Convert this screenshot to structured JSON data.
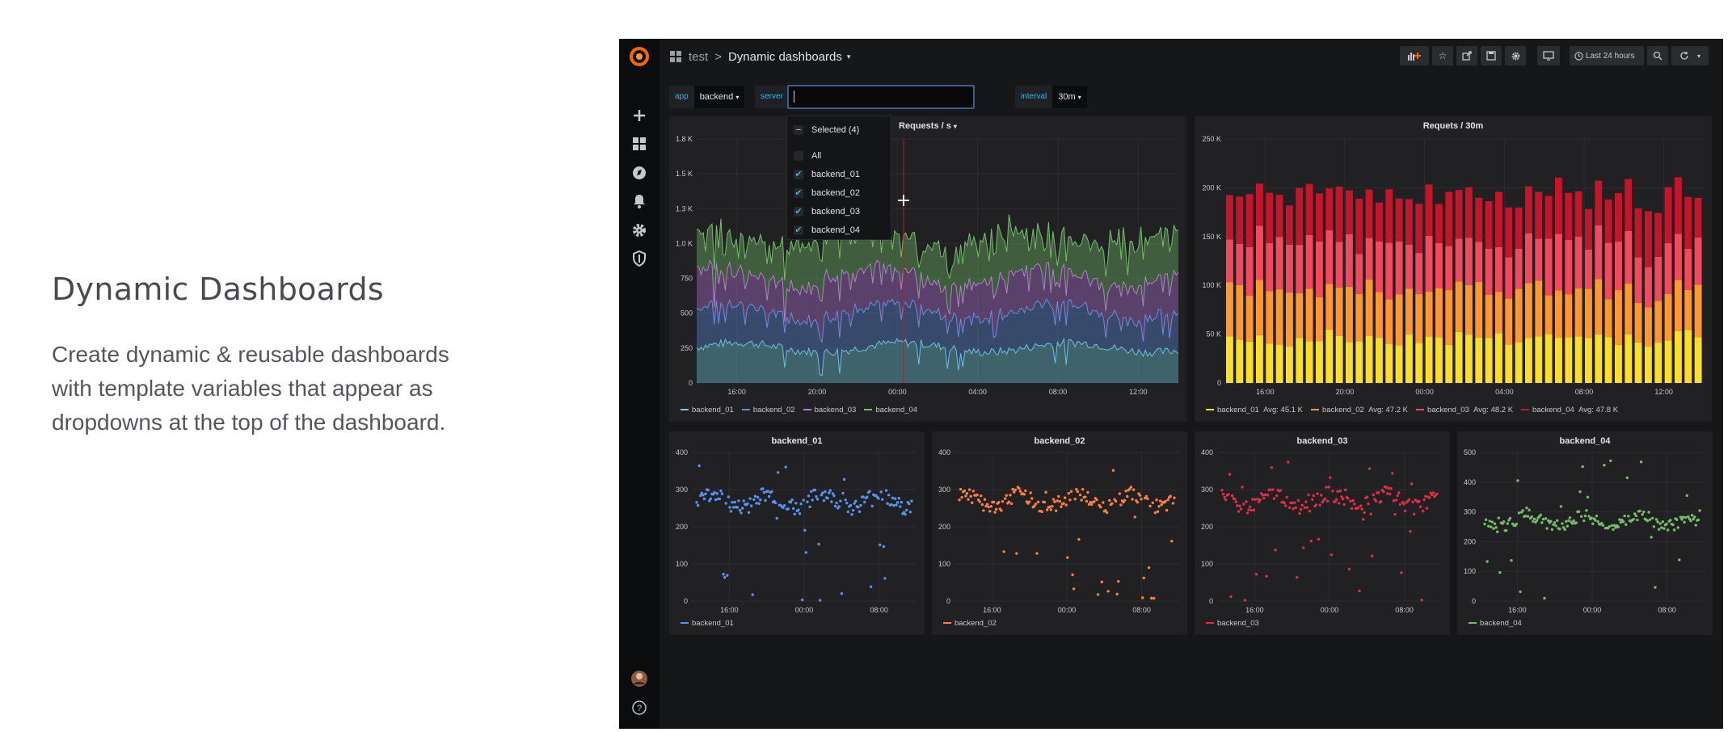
{
  "hero": {
    "title": "Dynamic Dashboards",
    "description": "Create dynamic & reusable dashboards with template variables that appear as dropdowns at the top of the dashboard."
  },
  "topbar": {
    "folder": "test",
    "separator": ">",
    "dashboard_title": "Dynamic dashboards",
    "time_range": "Last 24 hours"
  },
  "variables": [
    {
      "label": "app",
      "value": "backend"
    },
    {
      "label": "server",
      "value": ""
    },
    {
      "label": "interval",
      "value": "30m"
    }
  ],
  "dropdown": {
    "selected_label": "Selected (4)",
    "all_label": "All",
    "options": [
      {
        "label": "backend_01",
        "checked": true
      },
      {
        "label": "backend_02",
        "checked": true
      },
      {
        "label": "backend_03",
        "checked": true
      },
      {
        "label": "backend_04",
        "checked": true
      }
    ]
  },
  "colors": {
    "backend_01": "#6ed0e0",
    "backend_02": "#5f8fe0",
    "backend_03": "#b877d9",
    "backend_04": "#73bf69",
    "bar_01": "#fade2a",
    "bar_02": "#ff9830",
    "bar_03": "#f2495c",
    "bar_04": "#c4162a",
    "scatter_01": "#5794f2",
    "scatter_02": "#ff7f3f",
    "scatter_03": "#e02f44",
    "scatter_04": "#73bf69"
  },
  "chart_data": [
    {
      "type": "area",
      "title": "Requests / s",
      "x_ticks": [
        "16:00",
        "20:00",
        "00:00",
        "04:00",
        "08:00",
        "12:00"
      ],
      "y_ticks": [
        "0",
        "250",
        "500",
        "750",
        "1.0 K",
        "1.3 K",
        "1.5 K",
        "1.8 K"
      ],
      "ylim": [
        0,
        1750
      ],
      "stacked": true,
      "series": [
        {
          "name": "backend_01",
          "mean": 255
        },
        {
          "name": "backend_02",
          "mean": 260
        },
        {
          "name": "backend_03",
          "mean": 250
        },
        {
          "name": "backend_04",
          "mean": 280
        }
      ]
    },
    {
      "type": "bar",
      "title": "Requets / 30m",
      "x_ticks": [
        "16:00",
        "20:00",
        "00:00",
        "04:00",
        "08:00",
        "12:00"
      ],
      "y_ticks": [
        "0",
        "50 K",
        "100 K",
        "150 K",
        "200 K",
        "250 K"
      ],
      "ylim": [
        0,
        250000
      ],
      "stacked": true,
      "series": [
        {
          "name": "backend_01",
          "legend": "Avg: 45.1 K",
          "avg": 45100
        },
        {
          "name": "backend_02",
          "legend": "Avg: 47.2 K",
          "avg": 47200
        },
        {
          "name": "backend_03",
          "legend": "Avg: 48.2 K",
          "avg": 48200
        },
        {
          "name": "backend_04",
          "legend": "Avg: 47.8 K",
          "avg": 47800
        }
      ]
    },
    {
      "type": "scatter",
      "title": "backend_01",
      "x_ticks": [
        "16:00",
        "00:00",
        "08:00"
      ],
      "y_ticks": [
        "0",
        "100",
        "200",
        "300",
        "400"
      ],
      "ylim": [
        0,
        400
      ],
      "series": [
        {
          "name": "backend_01",
          "center": 270
        }
      ]
    },
    {
      "type": "scatter",
      "title": "backend_02",
      "x_ticks": [
        "16:00",
        "00:00",
        "08:00"
      ],
      "y_ticks": [
        "0",
        "100",
        "200",
        "300",
        "400"
      ],
      "ylim": [
        0,
        400
      ],
      "series": [
        {
          "name": "backend_02",
          "center": 270
        }
      ]
    },
    {
      "type": "scatter",
      "title": "backend_03",
      "x_ticks": [
        "16:00",
        "00:00",
        "08:00"
      ],
      "y_ticks": [
        "0",
        "100",
        "200",
        "300",
        "400"
      ],
      "ylim": [
        0,
        400
      ],
      "series": [
        {
          "name": "backend_03",
          "center": 270
        }
      ]
    },
    {
      "type": "scatter",
      "title": "backend_04",
      "x_ticks": [
        "16:00",
        "00:00",
        "08:00"
      ],
      "y_ticks": [
        "0",
        "100",
        "200",
        "300",
        "400",
        "500"
      ],
      "ylim": [
        0,
        500
      ],
      "series": [
        {
          "name": "backend_04",
          "center": 270
        }
      ]
    }
  ]
}
